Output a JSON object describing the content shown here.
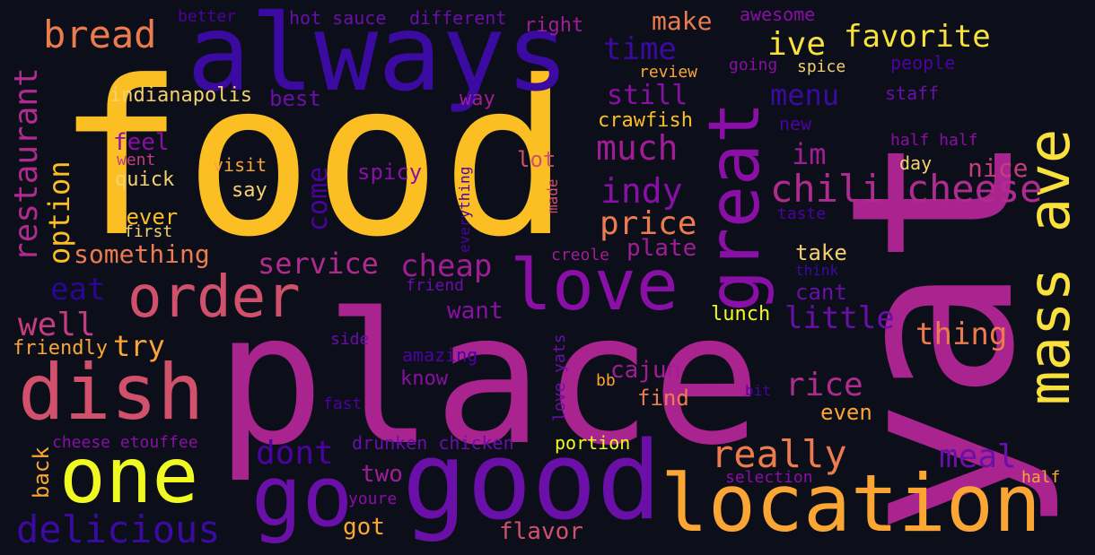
{
  "words": {
    "food": {
      "text": "food",
      "color": "#fbbf24"
    },
    "place": {
      "text": "place",
      "color": "#a9248f"
    },
    "yat": {
      "text": "yat",
      "color": "#a9248f"
    },
    "always": {
      "text": "always",
      "color": "#3b0aa0"
    },
    "good": {
      "text": "good",
      "color": "#6a0fa8"
    },
    "location": {
      "text": "location",
      "color": "#fba634"
    },
    "one": {
      "text": "one",
      "color": "#f0f921"
    },
    "dish": {
      "text": "dish",
      "color": "#d1516c"
    },
    "go": {
      "text": "go",
      "color": "#6a0fa8"
    },
    "love": {
      "text": "love",
      "color": "#8a0fa6"
    },
    "great": {
      "text": "great",
      "color": "#8a0fa6"
    },
    "mass_ave": {
      "text": "mass ave",
      "color": "#f8e13d"
    },
    "order": {
      "text": "order",
      "color": "#d1516c"
    },
    "chili_cheese": {
      "text": "chili cheese",
      "color": "#b02b8f"
    },
    "favorite": {
      "text": "favorite",
      "color": "#f8e13d"
    },
    "ive": {
      "text": "ive",
      "color": "#f8e13d"
    },
    "bread": {
      "text": "bread",
      "color": "#ec7b4e"
    },
    "restaurant": {
      "text": "restaurant",
      "color": "#b02b8f"
    },
    "delicious": {
      "text": "delicious",
      "color": "#3b0aa0"
    },
    "really": {
      "text": "really",
      "color": "#ec7b4e"
    },
    "service": {
      "text": "service",
      "color": "#b02b8f"
    },
    "cheap": {
      "text": "cheap",
      "color": "#a01d96"
    },
    "much": {
      "text": "much",
      "color": "#a01d96"
    },
    "indy": {
      "text": "indy",
      "color": "#8a0fa6"
    },
    "price": {
      "text": "price",
      "color": "#ec7b4e"
    },
    "time": {
      "text": "time",
      "color": "#3b0aa0"
    },
    "make": {
      "text": "make",
      "color": "#ec7b4e"
    },
    "menu": {
      "text": "menu",
      "color": "#3b0aa0"
    },
    "im": {
      "text": "im",
      "color": "#a01d96"
    },
    "nice": {
      "text": "nice",
      "color": "#c33d80"
    },
    "little": {
      "text": "little",
      "color": "#6a0fa8"
    },
    "thing": {
      "text": "thing",
      "color": "#ec7b4e"
    },
    "rice": {
      "text": "rice",
      "color": "#b02b8f"
    },
    "meal": {
      "text": "meal",
      "color": "#6a0fa8"
    },
    "dont": {
      "text": "dont",
      "color": "#4c02a1"
    },
    "well": {
      "text": "well",
      "color": "#c33d80"
    },
    "try": {
      "text": "try",
      "color": "#fba634"
    },
    "eat": {
      "text": "eat",
      "color": "#2c0594"
    },
    "option": {
      "text": "option",
      "color": "#fbbf24"
    },
    "come": {
      "text": "come",
      "color": "#4c02a1"
    },
    "feel": {
      "text": "feel",
      "color": "#8a0fa6"
    },
    "quick": {
      "text": "quick",
      "color": "#f3d16e"
    },
    "never": {
      "text": "never",
      "color": "#fbbf24"
    },
    "something": {
      "text": "something",
      "color": "#ec7b4e"
    },
    "indianapolis": {
      "text": "indianapolis",
      "color": "#f3d16e"
    },
    "best": {
      "text": "best",
      "color": "#6a0fa8"
    },
    "still": {
      "text": "still",
      "color": "#8a0fa6"
    },
    "crawfish": {
      "text": "crawfish",
      "color": "#fbbf24"
    },
    "plate": {
      "text": "plate",
      "color": "#a01d96"
    },
    "cajun": {
      "text": "cajun",
      "color": "#a01d96"
    },
    "find": {
      "text": "find",
      "color": "#ec7b4e"
    },
    "even": {
      "text": "even",
      "color": "#fba634"
    },
    "take": {
      "text": "take",
      "color": "#f3d16e"
    },
    "cant": {
      "text": "cant",
      "color": "#6a0fa8"
    },
    "lunch": {
      "text": "lunch",
      "color": "#f0f921"
    },
    "want": {
      "text": "want",
      "color": "#8a0fa6"
    },
    "two": {
      "text": "two",
      "color": "#a01d96"
    },
    "got": {
      "text": "got",
      "color": "#fba634"
    },
    "flavor": {
      "text": "flavor",
      "color": "#d1516c"
    },
    "know": {
      "text": "know",
      "color": "#8a0fa6"
    },
    "amazing": {
      "text": "amazing",
      "color": "#4c02a1"
    },
    "drunken_chicken": {
      "text": "drunken chicken",
      "color": "#6a0fa8"
    },
    "portion": {
      "text": "portion",
      "color": "#f0f921"
    },
    "friendly": {
      "text": "friendly",
      "color": "#fba634"
    },
    "cheese_etouffee": {
      "text": "cheese etouffee",
      "color": "#8a0fa6"
    },
    "back": {
      "text": "back",
      "color": "#fba634"
    },
    "say": {
      "text": "say",
      "color": "#f3d16e"
    },
    "visit": {
      "text": "visit",
      "color": "#fba634"
    },
    "went": {
      "text": "went",
      "color": "#c33d80"
    },
    "first": {
      "text": "first",
      "color": "#f3d16e"
    },
    "spicy": {
      "text": "spicy",
      "color": "#8a0fa6"
    },
    "lot": {
      "text": "lot",
      "color": "#d1516c"
    },
    "made": {
      "text": "made",
      "color": "#d1516c"
    },
    "everything": {
      "text": "everything",
      "color": "#4c02a1"
    },
    "way": {
      "text": "way",
      "color": "#a01d96"
    },
    "creole": {
      "text": "creole",
      "color": "#a01d96"
    },
    "friend": {
      "text": "friend",
      "color": "#6a0fa8"
    },
    "side": {
      "text": "side",
      "color": "#6a0fa8"
    },
    "fast": {
      "text": "fast",
      "color": "#4c02a1"
    },
    "youre": {
      "text": "youre",
      "color": "#8a0fa6"
    },
    "love_yats": {
      "text": "love yats",
      "color": "#6a0fa8"
    },
    "bb": {
      "text": "bb",
      "color": "#fba634"
    },
    "better": {
      "text": "better",
      "color": "#4c02a1"
    },
    "hot_sauce": {
      "text": "hot sauce",
      "color": "#6a0fa8"
    },
    "different": {
      "text": "different",
      "color": "#6a0fa8"
    },
    "right": {
      "text": "right",
      "color": "#a01d96"
    },
    "awesome": {
      "text": "awesome",
      "color": "#8a0fa6"
    },
    "review": {
      "text": "review",
      "color": "#fba634"
    },
    "going": {
      "text": "going",
      "color": "#8a0fa6"
    },
    "spice": {
      "text": "spice",
      "color": "#f3d16e"
    },
    "people": {
      "text": "people",
      "color": "#4c02a1"
    },
    "staff": {
      "text": "staff",
      "color": "#6a0fa8"
    },
    "new": {
      "text": "new",
      "color": "#4c02a1"
    },
    "half_half": {
      "text": "half half",
      "color": "#8a0fa6"
    },
    "day": {
      "text": "day",
      "color": "#f3d16e"
    },
    "taste": {
      "text": "taste",
      "color": "#4c02a1"
    },
    "think": {
      "text": "think",
      "color": "#3b0aa0"
    },
    "bit": {
      "text": "bit",
      "color": "#4c02a1"
    },
    "selection": {
      "text": "selection",
      "color": "#8a0fa6"
    },
    "half": {
      "text": "half",
      "color": "#fba634"
    }
  }
}
